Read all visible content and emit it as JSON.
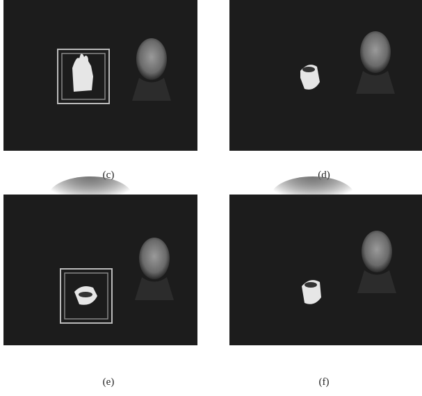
{
  "panels": [
    {
      "label": "(c)"
    },
    {
      "label": "(d)"
    },
    {
      "label": "(e)"
    },
    {
      "label": "(f)"
    }
  ]
}
